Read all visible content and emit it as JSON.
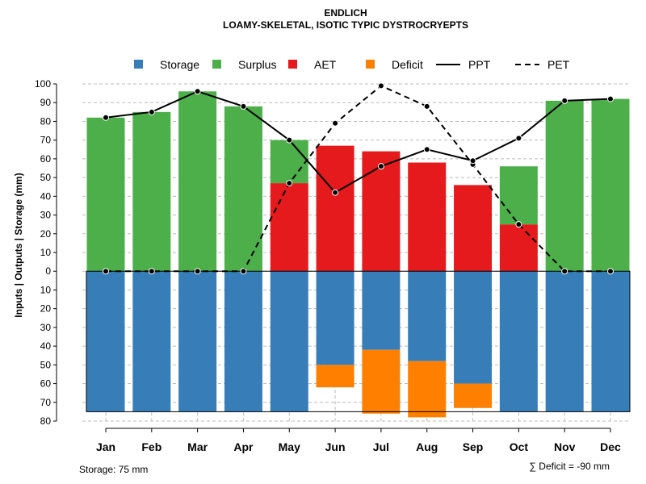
{
  "chart_data": {
    "type": "bar",
    "title": "ENDLICH",
    "subtitle": "LOAMY-SKELETAL, ISOTIC TYPIC DYSTROCRYEPTS",
    "ylabel": "Inputs | Outputs | Storage     (mm)",
    "ylim": [
      -80,
      100
    ],
    "y_tick_values": [
      -80,
      -70,
      -60,
      -50,
      -40,
      -30,
      -20,
      -10,
      0,
      10,
      20,
      30,
      40,
      50,
      60,
      70,
      80,
      90,
      100
    ],
    "y_tick_labels": [
      "80",
      "70",
      "60",
      "50",
      "40",
      "30",
      "20",
      "10",
      "0",
      "10",
      "20",
      "30",
      "40",
      "50",
      "60",
      "70",
      "80",
      "90",
      "100"
    ],
    "categories": [
      "Jan",
      "Feb",
      "Mar",
      "Apr",
      "May",
      "Jun",
      "Jul",
      "Aug",
      "Sep",
      "Oct",
      "Nov",
      "Dec"
    ],
    "series": [
      {
        "name": "Storage",
        "color": "#377EB8",
        "values": [
          75,
          75,
          75,
          75,
          75,
          50,
          42,
          48,
          60,
          75,
          75,
          75
        ]
      },
      {
        "name": "Surplus",
        "color": "#4DAF4A",
        "values": [
          82,
          85,
          96,
          88,
          23,
          0,
          0,
          0,
          0,
          31,
          91,
          92
        ]
      },
      {
        "name": "AET",
        "color": "#E41A1C",
        "values": [
          0,
          0,
          0,
          0,
          47,
          67,
          64,
          58,
          46,
          25,
          0,
          0
        ]
      },
      {
        "name": "Deficit",
        "color": "#FF7F00",
        "values": [
          0,
          0,
          0,
          0,
          0,
          12,
          34,
          30,
          13,
          0,
          0,
          0
        ]
      },
      {
        "name": "PPT",
        "style": "solid",
        "values": [
          82,
          85,
          96,
          88,
          70,
          42,
          56,
          65,
          59,
          71,
          91,
          92
        ]
      },
      {
        "name": "PET",
        "style": "dashed",
        "values": [
          0,
          0,
          0,
          0,
          47,
          79,
          99,
          88,
          57,
          25,
          0,
          0
        ]
      }
    ],
    "legend_position": "top",
    "grid": true
  },
  "footer": {
    "storage_note": "Storage: 75 mm",
    "deficit_note": "∑ Deficit = -90 mm"
  }
}
